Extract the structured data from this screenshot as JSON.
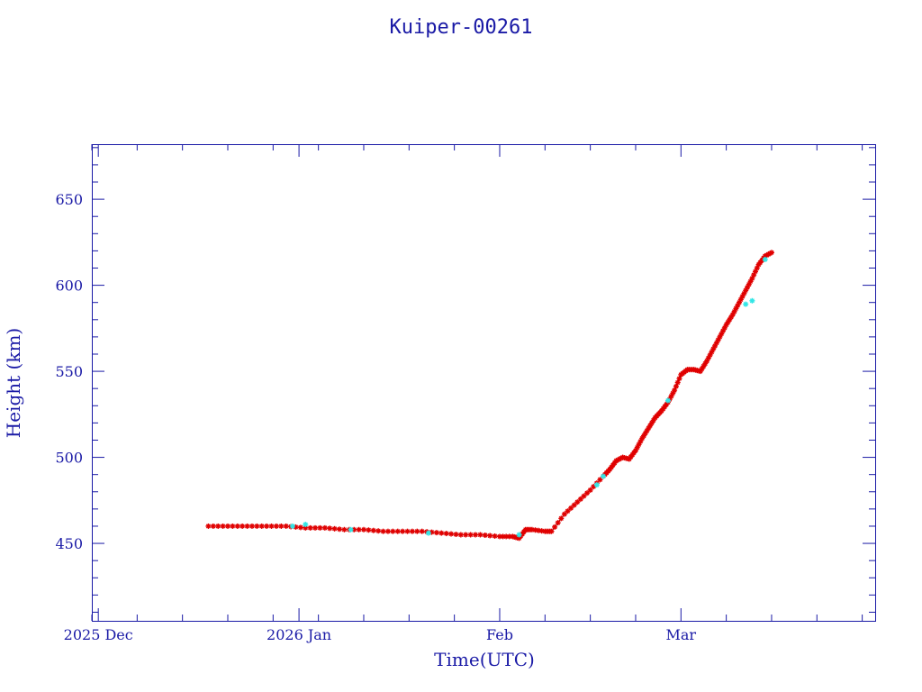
{
  "colors": {
    "axis": "#1a1aa6",
    "trace_line": "#000000",
    "marker_primary": "#e00000",
    "marker_secondary": "#33e6e6"
  },
  "chart_data": {
    "type": "scatter",
    "title": "Kuiper-00261",
    "xlabel": "Time(UTC)",
    "ylabel": "Height (km)",
    "x_axis_type": "date",
    "xlim": [
      "2025-11-30",
      "2026-03-31"
    ],
    "ylim": [
      405,
      682
    ],
    "x_ticks": [
      {
        "date": "2025-12-01",
        "label": "2025 Dec"
      },
      {
        "date": "2026-01-01",
        "label": "2026 Jan"
      },
      {
        "date": "2026-02-01",
        "label": "Feb"
      },
      {
        "date": "2026-03-01",
        "label": "Mar"
      }
    ],
    "y_ticks": [
      450,
      500,
      550,
      600,
      650
    ],
    "grid": false,
    "marker": "asterisk",
    "connected_line": true,
    "series": [
      {
        "color": "#e00000",
        "points": [
          [
            "2025-12-18",
            460
          ],
          [
            "2025-12-21",
            460
          ],
          [
            "2025-12-24",
            460
          ],
          [
            "2025-12-27",
            460
          ],
          [
            "2025-12-30",
            460
          ],
          [
            "2026-01-02",
            459
          ],
          [
            "2026-01-05",
            459
          ],
          [
            "2026-01-08",
            458
          ],
          [
            "2026-01-11",
            458
          ],
          [
            "2026-01-14",
            457
          ],
          [
            "2026-01-17",
            457
          ],
          [
            "2026-01-20",
            457
          ],
          [
            "2026-01-23",
            456
          ],
          [
            "2026-01-26",
            455
          ],
          [
            "2026-01-29",
            455
          ],
          [
            "2026-02-01",
            454
          ],
          [
            "2026-02-03",
            454
          ],
          [
            "2026-02-04",
            453
          ],
          [
            "2026-02-05",
            458
          ],
          [
            "2026-02-06",
            458
          ],
          [
            "2026-02-08",
            457
          ],
          [
            "2026-02-09",
            457
          ],
          [
            "2026-02-11",
            467
          ],
          [
            "2026-02-13",
            474
          ],
          [
            "2026-02-15",
            481
          ],
          [
            "2026-02-17",
            489
          ],
          [
            "2026-02-18",
            493
          ],
          [
            "2026-02-19",
            498
          ],
          [
            "2026-02-20",
            500
          ],
          [
            "2026-02-21",
            499
          ],
          [
            "2026-02-22",
            504
          ],
          [
            "2026-02-23",
            511
          ],
          [
            "2026-02-24",
            517
          ],
          [
            "2026-02-25",
            523
          ],
          [
            "2026-02-26",
            527
          ],
          [
            "2026-02-27",
            532
          ],
          [
            "2026-02-28",
            539
          ],
          [
            "2026-03-01",
            548
          ],
          [
            "2026-03-02",
            551
          ],
          [
            "2026-03-03",
            551
          ],
          [
            "2026-03-04",
            550
          ],
          [
            "2026-03-05",
            556
          ],
          [
            "2026-03-06",
            563
          ],
          [
            "2026-03-07",
            570
          ],
          [
            "2026-03-08",
            577
          ],
          [
            "2026-03-09",
            583
          ],
          [
            "2026-03-10",
            590
          ],
          [
            "2026-03-11",
            597
          ],
          [
            "2026-03-12",
            604
          ],
          [
            "2026-03-13",
            612
          ],
          [
            "2026-03-14",
            617
          ],
          [
            "2026-03-15",
            619
          ]
        ]
      },
      {
        "color": "#33e6e6",
        "points": [
          [
            "2025-12-31",
            460
          ],
          [
            "2026-01-02",
            461
          ],
          [
            "2026-01-09",
            458
          ],
          [
            "2026-01-21",
            456
          ],
          [
            "2026-02-04",
            455
          ],
          [
            "2026-02-16",
            484
          ],
          [
            "2026-02-17",
            489
          ],
          [
            "2026-02-27",
            533
          ],
          [
            "2026-03-11",
            589
          ],
          [
            "2026-03-12",
            591
          ],
          [
            "2026-03-14",
            615
          ]
        ]
      }
    ]
  }
}
